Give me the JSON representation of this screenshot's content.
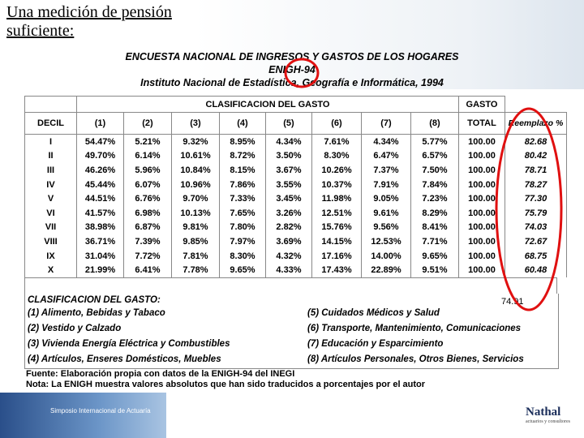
{
  "title": "Una medición de pensión suficiente:",
  "header": {
    "lines": [
      "ENCUESTA NACIONAL DE INGRESOS Y GASTOS DE LOS HOGARES",
      "ENIGH-94",
      "Instituto Nacional de Estadística, Geografía e Informática, 1994"
    ]
  },
  "table": {
    "group_headers": [
      "CLASIFICACION DEL GASTO",
      "GASTO"
    ],
    "columns": [
      "DECIL",
      "(1)",
      "(2)",
      "(3)",
      "(4)",
      "(5)",
      "(6)",
      "(7)",
      "(8)",
      "TOTAL",
      "Reemplazo %"
    ],
    "rows": [
      [
        "I",
        "54.47%",
        "5.21%",
        "9.32%",
        "8.95%",
        "4.34%",
        "7.61%",
        "4.34%",
        "5.77%",
        "100.00",
        "82.68"
      ],
      [
        "II",
        "49.70%",
        "6.14%",
        "10.61%",
        "8.72%",
        "3.50%",
        "8.30%",
        "6.47%",
        "6.57%",
        "100.00",
        "80.42"
      ],
      [
        "III",
        "46.26%",
        "5.96%",
        "10.84%",
        "8.15%",
        "3.67%",
        "10.26%",
        "7.37%",
        "7.50%",
        "100.00",
        "78.71"
      ],
      [
        "IV",
        "45.44%",
        "6.07%",
        "10.96%",
        "7.86%",
        "3.55%",
        "10.37%",
        "7.91%",
        "7.84%",
        "100.00",
        "78.27"
      ],
      [
        "V",
        "44.51%",
        "6.76%",
        "9.70%",
        "7.33%",
        "3.45%",
        "11.98%",
        "9.05%",
        "7.23%",
        "100.00",
        "77.30"
      ],
      [
        "VI",
        "41.57%",
        "6.98%",
        "10.13%",
        "7.65%",
        "3.26%",
        "12.51%",
        "9.61%",
        "8.29%",
        "100.00",
        "75.79"
      ],
      [
        "VII",
        "38.98%",
        "6.87%",
        "9.81%",
        "7.80%",
        "2.82%",
        "15.76%",
        "9.56%",
        "8.41%",
        "100.00",
        "74.03"
      ],
      [
        "VIII",
        "36.71%",
        "7.39%",
        "9.85%",
        "7.97%",
        "3.69%",
        "14.15%",
        "12.53%",
        "7.71%",
        "100.00",
        "72.67"
      ],
      [
        "IX",
        "31.04%",
        "7.72%",
        "7.81%",
        "8.30%",
        "4.32%",
        "17.16%",
        "14.00%",
        "9.65%",
        "100.00",
        "68.75"
      ],
      [
        "X",
        "21.99%",
        "6.41%",
        "7.78%",
        "9.65%",
        "4.33%",
        "17.43%",
        "22.89%",
        "9.51%",
        "100.00",
        "60.48"
      ]
    ]
  },
  "annotation": "74.91",
  "legend": {
    "title": "CLASIFICACION DEL GASTO:",
    "left": [
      "(1) Alimento, Bebidas y Tabaco",
      "(2) Vestido y Calzado",
      "(3) Vivienda Energía Eléctrica y Combustibles",
      "(4) Artículos, Enseres Domésticos,  Muebles"
    ],
    "right": [
      "(5) Cuidados Médicos y Salud",
      "(6) Transporte, Mantenimiento,  Comunicaciones",
      "(7) Educación y Esparcimiento",
      "(8) Artículos Personales, Otros Bienes, Servicios"
    ]
  },
  "notes": [
    "Fuente: Elaboración propia con datos de la ENIGH-94 del INEGI",
    "Nota: La ENIGH muestra valores absolutos que han sido traducidos a porcentajes por el autor"
  ],
  "banner": {
    "text": "Simposio Internacional de Actuaría"
  },
  "logo": {
    "name": "Nathal",
    "tagline": "actuarios y consultores"
  }
}
